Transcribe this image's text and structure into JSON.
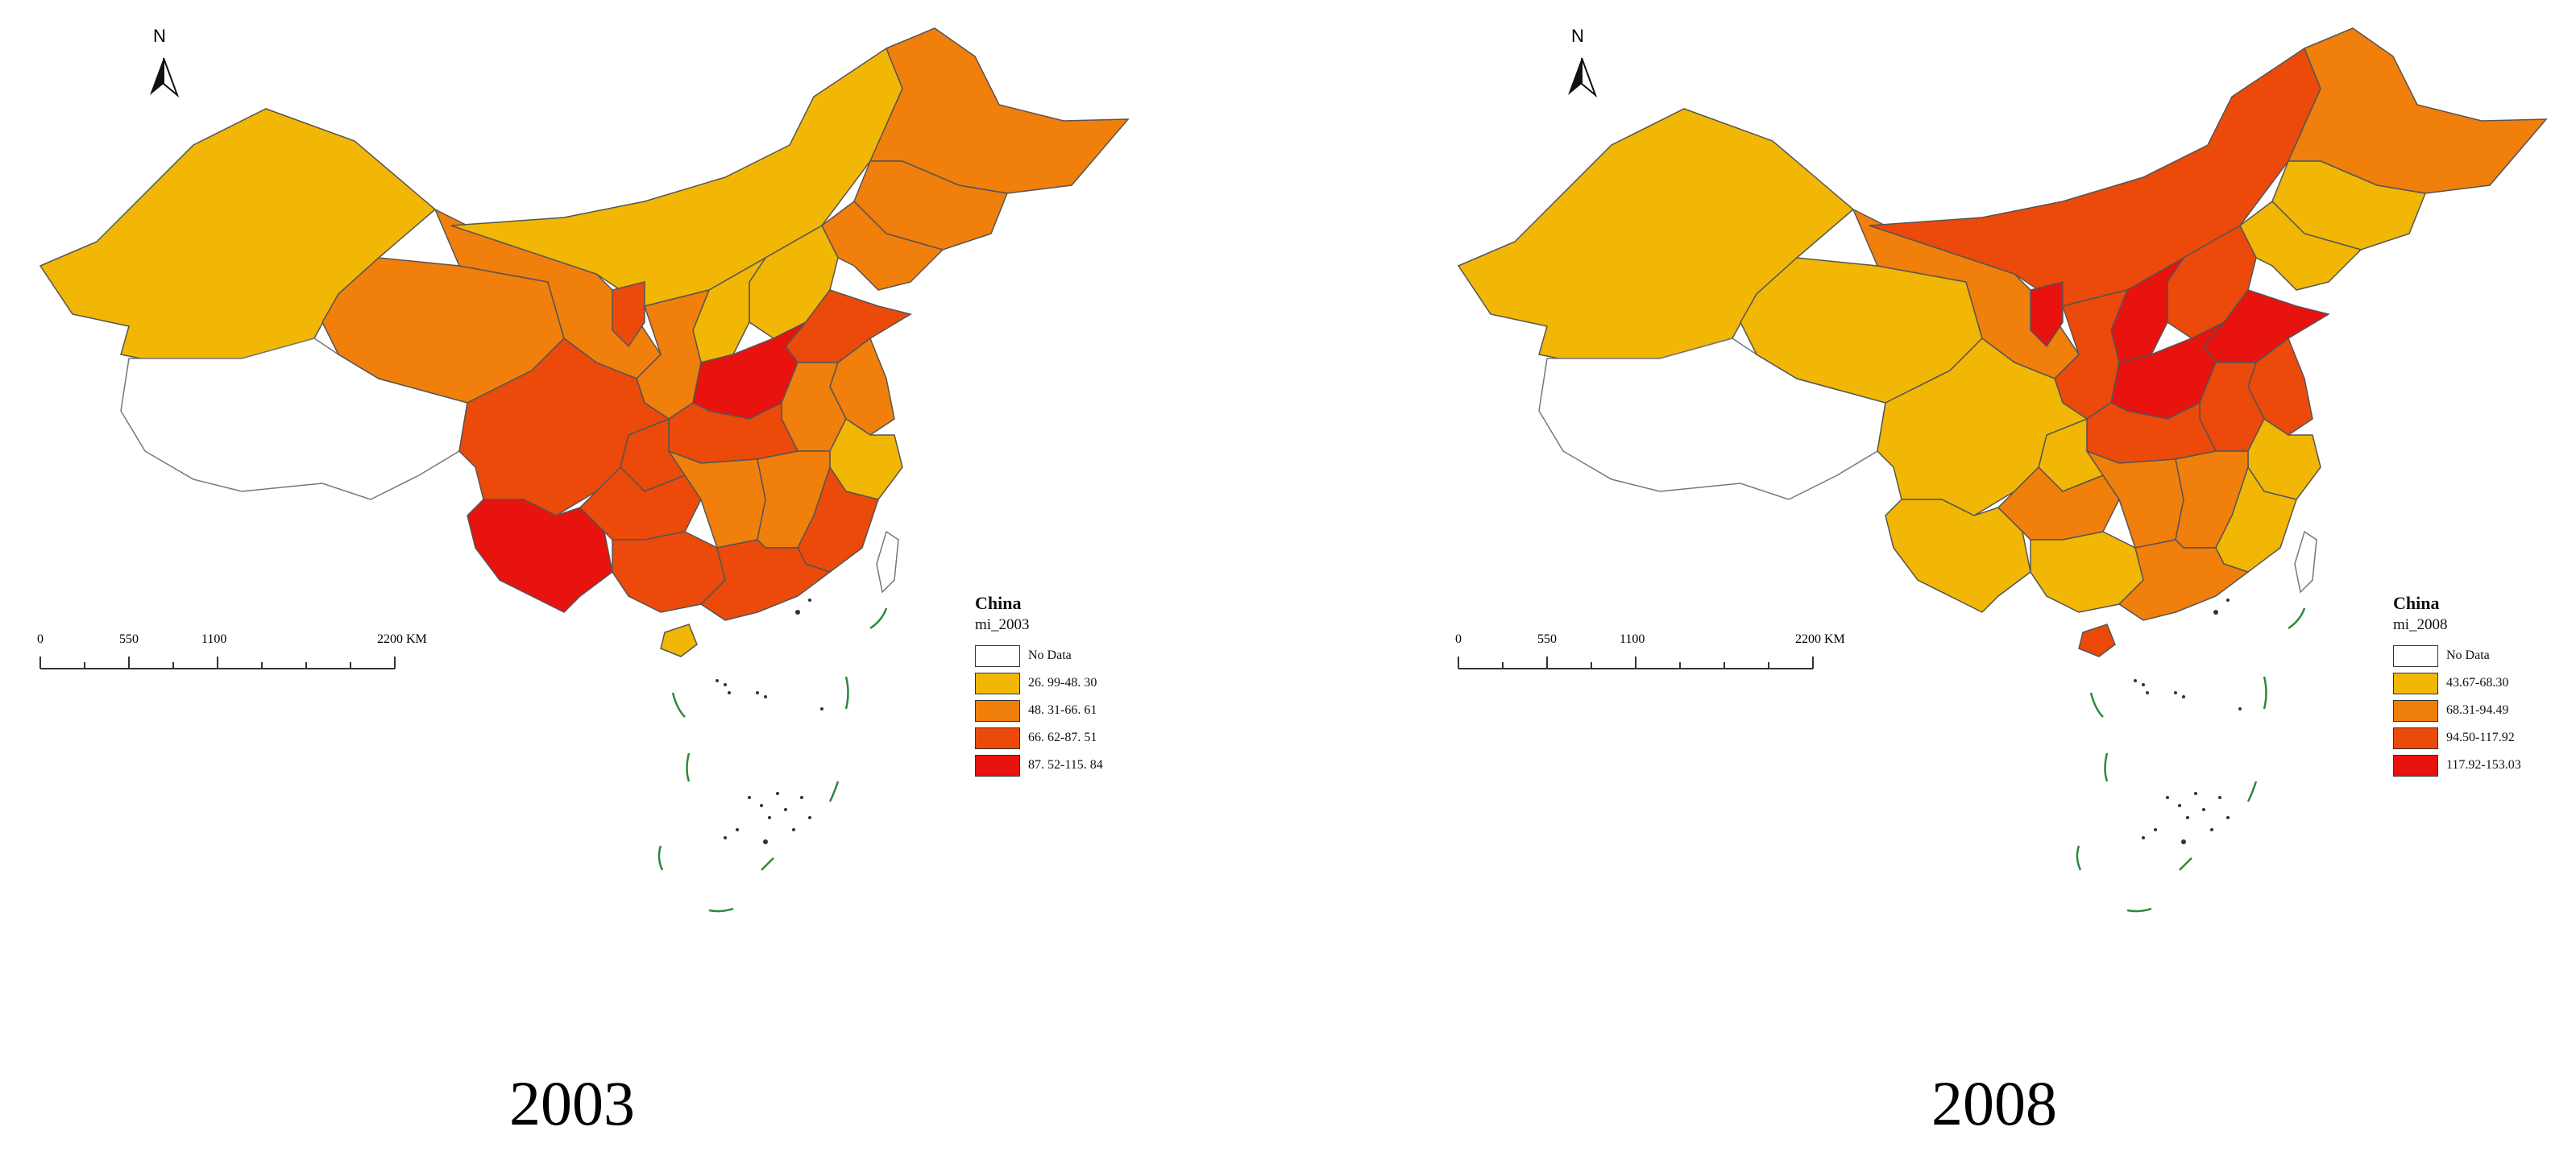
{
  "maps": [
    {
      "year": "2003",
      "legend": {
        "title": "China",
        "subtitle": "mi_2003",
        "classes": [
          {
            "label": "No Data",
            "color": "#ffffff"
          },
          {
            "label": "26. 99-48. 30",
            "color": "#f2b705"
          },
          {
            "label": "48. 31-66. 61",
            "color": "#f07f0c"
          },
          {
            "label": "66. 62-87. 51",
            "color": "#eb4a0b"
          },
          {
            "label": "87. 52-115. 84",
            "color": "#e8120f"
          }
        ]
      },
      "scale": {
        "ticks": [
          "0",
          "550",
          "1100",
          "2200 KM"
        ]
      },
      "north_label": "N"
    },
    {
      "year": "2008",
      "legend": {
        "title": "China",
        "subtitle": "mi_2008",
        "classes": [
          {
            "label": "No Data",
            "color": "#ffffff"
          },
          {
            "label": "43.67-68.30",
            "color": "#f2b705"
          },
          {
            "label": "68.31-94.49",
            "color": "#f07f0c"
          },
          {
            "label": "94.50-117.92",
            "color": "#eb4a0b"
          },
          {
            "label": "117.92-153.03",
            "color": "#e8120f"
          }
        ]
      },
      "scale": {
        "ticks": [
          "0",
          "550",
          "1100",
          "2200 KM"
        ]
      },
      "north_label": "N"
    }
  ]
}
